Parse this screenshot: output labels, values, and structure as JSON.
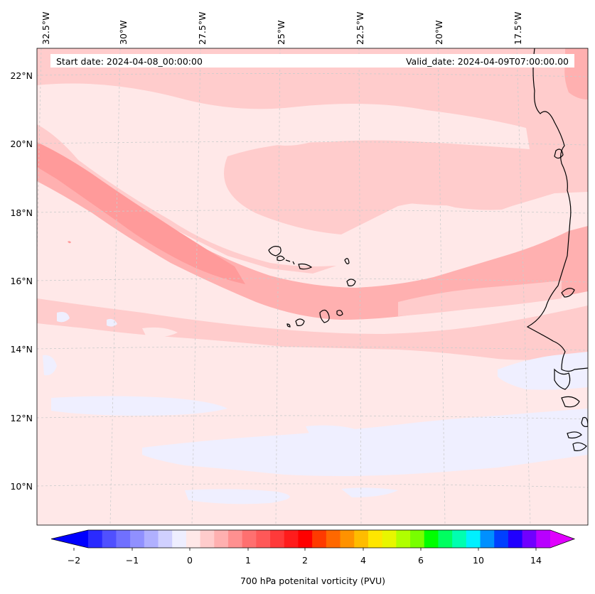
{
  "header": {
    "start_date": "Start date: 2024-04-08_00:00:00",
    "valid_date": "Valid_date: 2024-04-09T07:00:00.00"
  },
  "axes": {
    "lon_labels": [
      "32.5°W",
      "30°W",
      "27.5°W",
      "25°W",
      "22.5°W",
      "20°W",
      "17.5°W"
    ],
    "lat_labels": [
      "22°N",
      "20°N",
      "18°N",
      "16°N",
      "14°N",
      "12°N",
      "10°N"
    ]
  },
  "colorbar": {
    "label": "700 hPa potenital vorticity (PVU)",
    "tick_labels": [
      "−2",
      "−1",
      "0",
      "1",
      "2",
      "4",
      "6",
      "10",
      "14"
    ],
    "colors": [
      "#0000ff",
      "#2a2aff",
      "#5050ff",
      "#7070ff",
      "#9090ff",
      "#b0b0ff",
      "#d0d0ff",
      "#eeeeff",
      "#ffe8e8",
      "#ffcccc",
      "#ffb0b0",
      "#ff9090",
      "#ff7070",
      "#ff5858",
      "#ff3a3a",
      "#ff1c1c",
      "#ff0000",
      "#ff3a00",
      "#ff6800",
      "#ff9200",
      "#ffbc00",
      "#ffe600",
      "#e8f600",
      "#b0ff00",
      "#78ff00",
      "#00ff00",
      "#00ff60",
      "#00ffb0",
      "#00f0ff",
      "#0090ff",
      "#0040ff",
      "#2000ff",
      "#7000ff",
      "#b800ff",
      "#e000ff"
    ]
  },
  "map_colors": {
    "background": "#ffe8e8",
    "light": "#ffcccc",
    "medium": "#ffb0b0",
    "strong": "#ff9a9a",
    "negative": "#efefff",
    "coast": "#000000",
    "grid": "#cccccc"
  }
}
